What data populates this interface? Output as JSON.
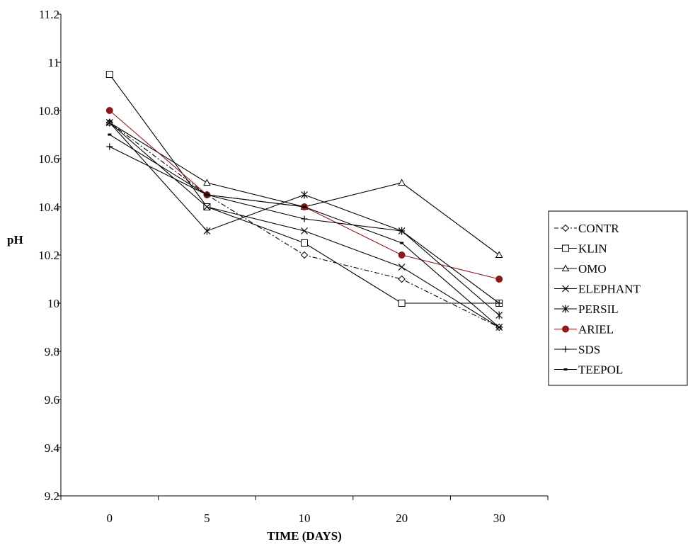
{
  "chart_data": {
    "type": "line",
    "title": "",
    "xlabel": "TIME (DAYS)",
    "ylabel": "pH",
    "categories": [
      "0",
      "5",
      "10",
      "20",
      "30"
    ],
    "yticks": [
      "9.2",
      "9.4",
      "9.6",
      "9.8",
      "10",
      "10.2",
      "10.4",
      "10.6",
      "10.8",
      "11",
      "11.2"
    ],
    "ylim": [
      9.2,
      11.2
    ],
    "grid": false,
    "legend_position": "right",
    "series": [
      {
        "name": "CONTR",
        "marker": "diamond",
        "dash": "dashdot",
        "color": "#000000",
        "values": [
          10.75,
          10.45,
          10.2,
          10.1,
          9.9
        ]
      },
      {
        "name": "KLIN",
        "marker": "square",
        "dash": "solid",
        "color": "#000000",
        "values": [
          10.95,
          10.4,
          10.25,
          10.0,
          10.0
        ]
      },
      {
        "name": "OMO",
        "marker": "triangle",
        "dash": "solid",
        "color": "#000000",
        "values": [
          10.75,
          10.5,
          10.4,
          10.5,
          10.2
        ]
      },
      {
        "name": "ELEPHANT",
        "marker": "x",
        "dash": "solid",
        "color": "#000000",
        "values": [
          10.75,
          10.4,
          10.3,
          10.15,
          9.9
        ]
      },
      {
        "name": "PERSIL",
        "marker": "star",
        "dash": "solid",
        "color": "#000000",
        "values": [
          10.75,
          10.3,
          10.45,
          10.3,
          9.95
        ]
      },
      {
        "name": "ARIEL",
        "marker": "circle",
        "dash": "solid",
        "color": "#8b1a1a",
        "values": [
          10.8,
          10.45,
          10.4,
          10.2,
          10.1
        ]
      },
      {
        "name": "SDS",
        "marker": "plus",
        "dash": "solid",
        "color": "#000000",
        "values": [
          10.65,
          10.45,
          10.35,
          10.3,
          10.0
        ]
      },
      {
        "name": "TEEPOL",
        "marker": "dash",
        "dash": "solid",
        "color": "#000000",
        "values": [
          10.7,
          10.45,
          10.4,
          10.25,
          9.9
        ]
      }
    ]
  }
}
